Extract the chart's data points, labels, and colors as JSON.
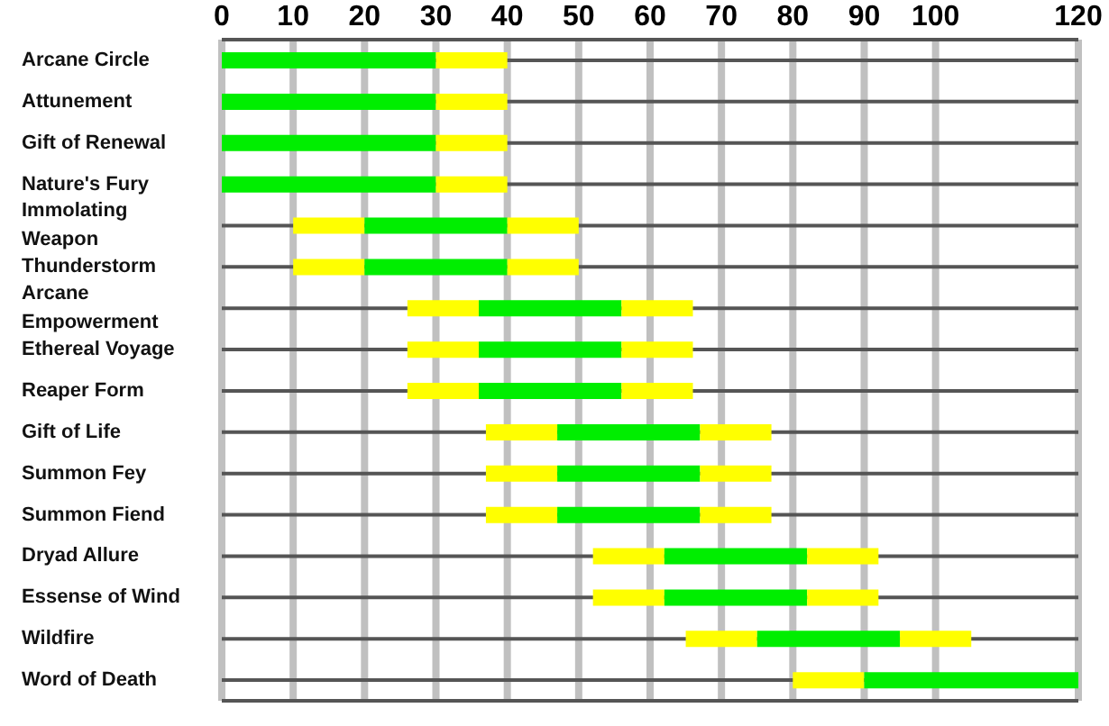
{
  "chart_data": {
    "type": "bar",
    "orientation": "horizontal",
    "categories": [
      "Arcane Circle",
      "Attunement",
      "Gift of Renewal",
      "Nature's Fury",
      "Immolating Weapon",
      "Thunderstorm",
      "Arcane Empowerment",
      "Ethereal Voyage",
      "Reaper Form",
      "Gift of Life",
      "Summon Fey",
      "Summon Fiend",
      "Dryad Allure",
      "Essense of Wind",
      "Wildfire",
      "Word of Death"
    ],
    "series": [
      {
        "color": "#ffff00",
        "base": [
          null,
          null,
          null,
          null,
          10,
          10,
          26,
          26,
          26,
          37,
          37,
          37,
          52,
          52,
          65,
          80
        ],
        "values": [
          null,
          null,
          null,
          null,
          10,
          10,
          10,
          10,
          10,
          10,
          10,
          10,
          10,
          10,
          10,
          10
        ]
      },
      {
        "color": "#00ee00",
        "base": [
          0,
          0,
          0,
          0,
          20,
          20,
          36,
          36,
          36,
          47,
          47,
          47,
          62,
          62,
          75,
          90
        ],
        "values": [
          30,
          30,
          30,
          30,
          20,
          20,
          20,
          20,
          20,
          20,
          20,
          20,
          20,
          20,
          20,
          30
        ]
      },
      {
        "color": "#ffff00",
        "base": [
          30,
          30,
          30,
          30,
          40,
          40,
          56,
          56,
          56,
          67,
          67,
          67,
          82,
          82,
          95,
          null
        ],
        "values": [
          10,
          10,
          10,
          10,
          10,
          10,
          10,
          10,
          10,
          10,
          10,
          10,
          10,
          10,
          10,
          null
        ]
      }
    ],
    "xlim": [
      0,
      120
    ],
    "xticks": [
      0,
      10,
      20,
      30,
      40,
      50,
      60,
      70,
      80,
      90,
      100,
      120
    ],
    "grid": true,
    "legend": false
  }
}
